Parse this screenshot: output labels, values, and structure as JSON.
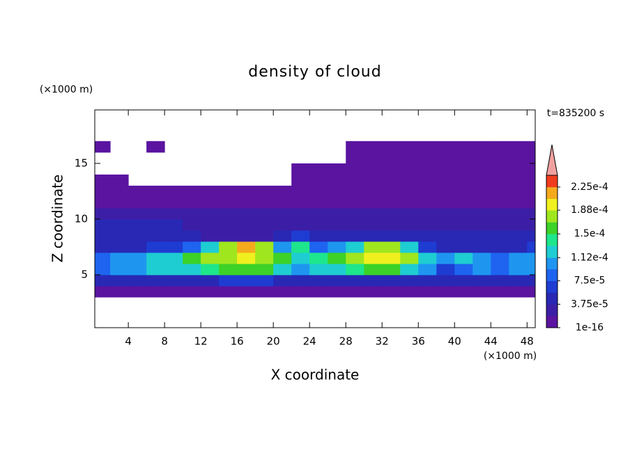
{
  "chart_data": {
    "type": "contourf",
    "title": "density of cloud",
    "x_label": "X coordinate",
    "y_label": "Z coordinate",
    "x_unit": "(×1000 m)",
    "y_unit": "(×1000 m)",
    "annotation": "t=835200 s",
    "xlim": [
      0.3,
      48.9
    ],
    "ylim": [
      0.25,
      19.8
    ],
    "xticks": [
      4,
      8,
      12,
      16,
      20,
      24,
      28,
      32,
      36,
      40,
      44,
      48
    ],
    "yticks": [
      5,
      10,
      15
    ],
    "x": [
      1,
      3,
      5,
      7,
      9,
      11,
      13,
      15,
      17,
      19,
      21,
      23,
      25,
      27,
      29,
      31,
      33,
      35,
      37,
      39,
      41,
      43,
      45,
      47,
      49
    ],
    "y": [
      3.5,
      4.5,
      5.5,
      6.5,
      7.5,
      8.5,
      9.5,
      10.5,
      11.5,
      12.5,
      13.5,
      14.5,
      15.5,
      16.5,
      17.5
    ],
    "z": [
      [
        5e-06,
        5e-06,
        5e-06,
        5e-06,
        5e-06,
        5e-06,
        5e-06,
        5e-06,
        5e-06,
        5e-06,
        5e-06,
        5e-06,
        5e-06,
        5e-06,
        5e-06,
        5e-06,
        5e-06,
        5e-06,
        5e-06,
        5e-06,
        5e-06,
        5e-06,
        5e-06,
        5e-06,
        5e-06
      ],
      [
        4e-05,
        4e-05,
        4e-05,
        4e-05,
        4e-05,
        4e-05,
        4e-05,
        6e-05,
        6e-05,
        6e-05,
        4e-05,
        5e-05,
        4e-05,
        4e-05,
        4e-05,
        4e-05,
        4e-05,
        4e-05,
        4e-05,
        4e-05,
        4e-05,
        4e-05,
        4e-05,
        4e-05,
        4e-05
      ],
      [
        9e-05,
        0.0001,
        0.00011,
        0.00012,
        0.00012,
        0.00013,
        0.00014,
        0.000155,
        0.00016,
        0.00015,
        0.00013,
        0.0001,
        0.00012,
        0.00013,
        0.00014,
        0.00015,
        0.00015,
        0.00013,
        0.00011,
        6e-05,
        9e-05,
        0.0001,
        9e-05,
        0.0001,
        0.0001
      ],
      [
        8e-05,
        0.0001,
        0.00011,
        0.00012,
        0.00013,
        0.00015,
        0.00017,
        0.000185,
        0.00019,
        0.00018,
        0.00015,
        0.00013,
        0.00014,
        0.00015,
        0.00017,
        0.00019,
        0.000195,
        0.00017,
        0.00012,
        0.00011,
        0.00013,
        0.00011,
        9e-05,
        0.0001,
        0.00011
      ],
      [
        4e-05,
        5e-05,
        5e-05,
        6e-05,
        7e-05,
        9e-05,
        0.00013,
        0.00017,
        0.00021,
        0.00017,
        0.0001,
        0.00014,
        9e-05,
        0.0001,
        0.00013,
        0.00017,
        0.00018,
        0.00012,
        6e-05,
        5e-05,
        5e-05,
        5e-05,
        4e-05,
        5e-05,
        6e-05
      ],
      [
        4e-05,
        4e-05,
        4e-05,
        4e-05,
        4e-05,
        4e-05,
        3e-05,
        3e-05,
        3e-05,
        3e-05,
        4e-05,
        7e-05,
        4e-05,
        4e-05,
        4e-05,
        4e-05,
        4e-05,
        4e-05,
        4e-05,
        4e-05,
        4e-05,
        4e-05,
        4e-05,
        4e-05,
        4e-05
      ],
      [
        4e-05,
        4e-05,
        4e-05,
        4e-05,
        4e-05,
        3e-05,
        3e-05,
        3e-05,
        3e-05,
        3e-05,
        3e-05,
        3e-05,
        3e-05,
        3e-05,
        3e-05,
        3e-05,
        3e-05,
        3e-05,
        3e-05,
        3e-05,
        3e-05,
        3e-05,
        3e-05,
        3e-05,
        3e-05
      ],
      [
        2e-05,
        2e-05,
        2e-05,
        2e-05,
        2e-05,
        2e-05,
        2e-05,
        2e-05,
        2e-05,
        2e-05,
        2e-05,
        2e-05,
        2e-05,
        2e-05,
        2e-05,
        2e-05,
        2e-05,
        2e-05,
        2e-05,
        2e-05,
        2e-05,
        2e-05,
        2e-05,
        2e-05,
        2e-05
      ],
      [
        1.5e-05,
        1.5e-05,
        1.5e-05,
        1.5e-05,
        1.5e-05,
        1.5e-05,
        1.5e-05,
        1.5e-05,
        1.5e-05,
        1.5e-05,
        1.5e-05,
        1.5e-05,
        1.5e-05,
        1.5e-05,
        1.5e-05,
        1.5e-05,
        1.5e-05,
        1.5e-05,
        1.5e-05,
        1.5e-05,
        1.5e-05,
        1.5e-05,
        1.5e-05,
        1.5e-05,
        1.5e-05
      ],
      [
        1e-05,
        1e-05,
        1e-05,
        1e-05,
        1e-05,
        1e-05,
        1e-05,
        1e-05,
        1e-05,
        1e-05,
        1e-05,
        1e-05,
        1e-05,
        1e-05,
        1e-05,
        1e-05,
        1e-05,
        1e-05,
        1e-05,
        1e-05,
        1e-05,
        1e-05,
        1e-05,
        1e-05,
        1e-05
      ],
      [
        1e-05,
        1e-05,
        null,
        null,
        null,
        null,
        null,
        null,
        null,
        null,
        null,
        1e-05,
        1e-05,
        1e-05,
        1e-05,
        1e-05,
        1e-05,
        1e-05,
        1e-05,
        1e-05,
        1e-05,
        1e-05,
        1e-05,
        1e-05,
        1e-05
      ],
      [
        null,
        null,
        null,
        null,
        null,
        null,
        null,
        null,
        null,
        null,
        null,
        1e-05,
        1e-05,
        1e-05,
        1e-05,
        1e-05,
        1e-05,
        1e-05,
        1e-05,
        1e-05,
        1e-05,
        1e-05,
        1e-05,
        1e-05,
        1e-05
      ],
      [
        null,
        null,
        null,
        null,
        null,
        null,
        null,
        null,
        null,
        null,
        null,
        null,
        null,
        null,
        1e-05,
        1e-05,
        1e-05,
        1e-05,
        1e-05,
        1e-05,
        1e-05,
        1e-05,
        1e-05,
        1e-05,
        1e-05
      ],
      [
        1e-05,
        null,
        null,
        1e-05,
        null,
        null,
        null,
        null,
        null,
        null,
        null,
        null,
        null,
        null,
        1e-05,
        1e-05,
        1e-05,
        1e-05,
        1e-05,
        1e-05,
        1e-05,
        1e-05,
        1e-05,
        1e-05,
        1e-05
      ],
      [
        null,
        null,
        null,
        null,
        null,
        null,
        null,
        null,
        null,
        null,
        null,
        null,
        null,
        null,
        null,
        null,
        null,
        null,
        null,
        null,
        null,
        null,
        null,
        null,
        null
      ]
    ],
    "levels": [
      1e-16,
      1.875e-05,
      3.75e-05,
      5.625e-05,
      7.5e-05,
      9.375e-05,
      0.000112,
      0.00013125,
      0.00015,
      0.00016875,
      0.000188,
      0.00020625,
      0.000225
    ],
    "colors": [
      "#5a14a0",
      "#3c1ea6",
      "#2828b4",
      "#1e3cd2",
      "#1e64f0",
      "#1e96f0",
      "#1ecdd2",
      "#1ee68c",
      "#3cd228",
      "#a0e61e",
      "#f0f01e",
      "#f5aa1e",
      "#f03c1e"
    ],
    "over_color": "#f0a0a0",
    "zlim": [
      1e-16,
      0.00024375
    ],
    "colorbar_ticks": [
      1e-16,
      {
        "value": 3.75e-05,
        "label": "3.75e-5"
      },
      {
        "value": 7.5e-05,
        "label": "7.5e-5"
      },
      {
        "value": 0.000112,
        "label": "1.12e-4"
      },
      {
        "value": 0.00015,
        "label": "1.5e-4"
      },
      {
        "value": 0.000188,
        "label": "1.88e-4"
      },
      {
        "value": 0.000225,
        "label": "2.25e-4"
      }
    ]
  }
}
